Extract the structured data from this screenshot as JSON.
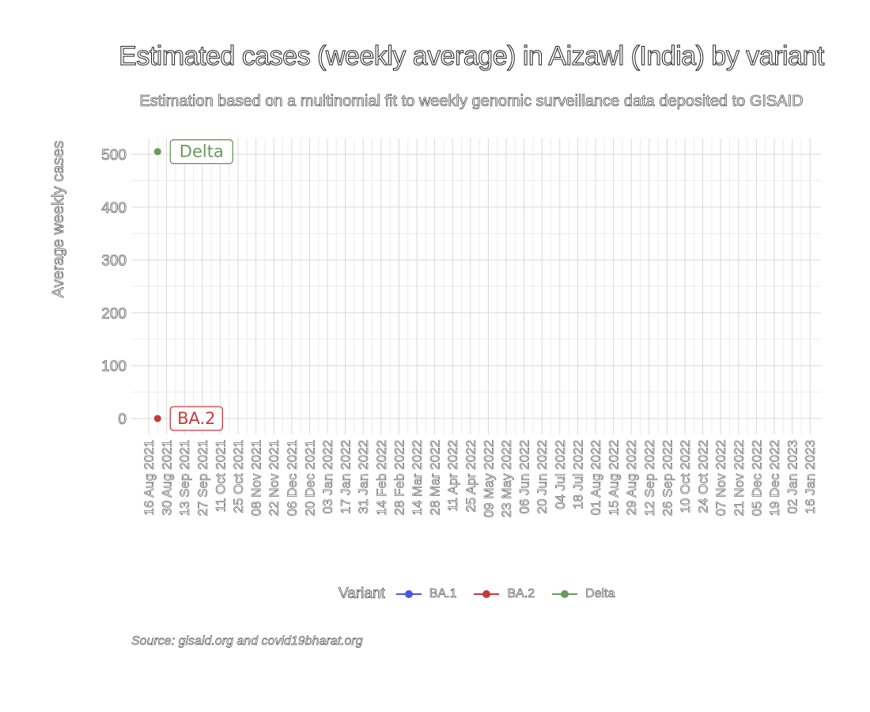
{
  "colors": {
    "grid_major": "#d9d9d9",
    "grid_minor": "#ececec",
    "BA.1": "#4a57e6",
    "BA.2": "#c9393a",
    "Delta": "#6a9a5a"
  },
  "legend": {
    "title": "Variant"
  },
  "caption": "Source: gisaid.org and covid19bharat.org",
  "chart_data": {
    "type": "scatter",
    "title": "Estimated cases (weekly average) in Aizawl (India) by variant",
    "subtitle": "Estimation based on a multinomial fit to weekly genomic surveillance data deposited to GISAID",
    "xlabel": "",
    "ylabel": "Average weekly cases",
    "ylim": [
      -30,
      530
    ],
    "yticks": [
      0,
      100,
      200,
      300,
      400,
      500
    ],
    "grid": true,
    "legend_position": "bottom",
    "x_tick_labels": [
      "16 Aug 2021",
      "30 Aug 2021",
      "13 Sep 2021",
      "27 Sep 2021",
      "11 Oct 2021",
      "25 Oct 2021",
      "08 Nov 2021",
      "22 Nov 2021",
      "06 Dec 2021",
      "20 Dec 2021",
      "03 Jan 2022",
      "17 Jan 2022",
      "31 Jan 2022",
      "14 Feb 2022",
      "28 Feb 2022",
      "14 Mar 2022",
      "28 Mar 2022",
      "11 Apr 2022",
      "25 Apr 2022",
      "09 May 2022",
      "23 May 2022",
      "06 Jun 2022",
      "20 Jun 2022",
      "04 Jul 2022",
      "18 Jul 2022",
      "01 Aug 2022",
      "15 Aug 2022",
      "29 Aug 2022",
      "12 Sep 2022",
      "26 Sep 2022",
      "10 Oct 2022",
      "24 Oct 2022",
      "07 Nov 2022",
      "21 Nov 2022",
      "05 Dec 2022",
      "19 Dec 2022",
      "02 Jan 2023",
      "16 Jan 2023"
    ],
    "series": [
      {
        "name": "BA.1",
        "points": []
      },
      {
        "name": "BA.2",
        "points": [
          {
            "x": "23 Aug 2021",
            "y": 0
          }
        ]
      },
      {
        "name": "Delta",
        "points": [
          {
            "x": "23 Aug 2021",
            "y": 505
          }
        ]
      }
    ],
    "point_labels": [
      {
        "series": "Delta",
        "text": "Delta"
      },
      {
        "series": "BA.2",
        "text": "BA.2"
      }
    ]
  }
}
